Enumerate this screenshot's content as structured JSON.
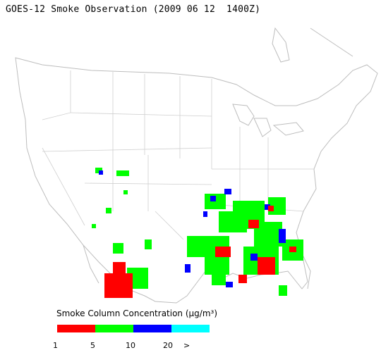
{
  "title": "GOES-12 Smoke Observation (2009 06 12  1400Z)",
  "legend": {
    "title": "Smoke Column Concentration (µg/m³)",
    "colors": [
      "#ff0000",
      "#00ff00",
      "#0000ff",
      "#00ffff"
    ],
    "ticks": [
      "1",
      "5",
      "10",
      "20",
      ">"
    ]
  }
}
